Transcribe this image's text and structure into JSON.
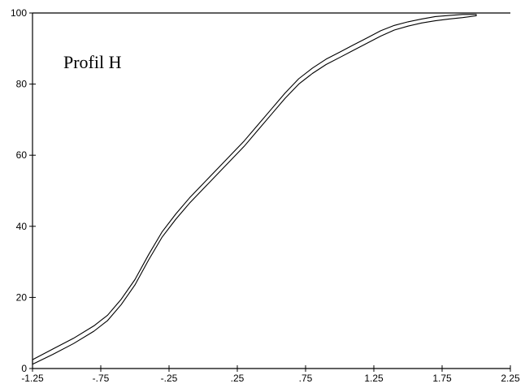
{
  "chart_data": {
    "type": "line",
    "title": "Profil H",
    "xlabel": "",
    "ylabel": "",
    "xlim": [
      -1.25,
      2.25
    ],
    "ylim": [
      0,
      100
    ],
    "x_ticks": [
      -1.25,
      -0.75,
      -0.25,
      0.25,
      0.75,
      1.25,
      1.75,
      2.25
    ],
    "x_tick_labels": [
      "-1.25",
      "-.75",
      "-.25",
      ".25",
      ".75",
      "1.25",
      "1.75",
      "2.25"
    ],
    "y_ticks": [
      0,
      20,
      40,
      60,
      80,
      100
    ],
    "y_tick_labels": [
      "0",
      "20",
      "40",
      "60",
      "80",
      "100"
    ],
    "grid": false,
    "series": [
      {
        "style": "closed-outline-band",
        "x": [
          -1.25,
          -1.1,
          -0.95,
          -0.8,
          -0.7,
          -0.6,
          -0.5,
          -0.4,
          -0.3,
          -0.2,
          -0.1,
          0.0,
          0.1,
          0.2,
          0.3,
          0.4,
          0.5,
          0.6,
          0.7,
          0.8,
          0.9,
          1.0,
          1.1,
          1.2,
          1.3,
          1.4,
          1.5,
          1.6,
          1.7,
          1.8,
          1.9,
          2.0
        ],
        "upper": [
          2.5,
          5.5,
          8.5,
          12,
          15,
          19.5,
          25,
          32,
          38.5,
          43.5,
          48,
          52,
          56,
          60,
          64,
          68.5,
          73,
          77.5,
          81.5,
          84.5,
          87,
          89,
          91,
          93,
          95,
          96.5,
          97.5,
          98.3,
          99,
          99.3,
          99.6,
          99.6
        ],
        "lower": [
          1.2,
          4,
          7,
          10.5,
          13.5,
          18,
          23.5,
          30.5,
          37,
          42,
          46.5,
          50.5,
          54.5,
          58.5,
          62.5,
          67,
          71.5,
          76,
          80,
          83,
          85.5,
          87.5,
          89.5,
          91.5,
          93.5,
          95.2,
          96.3,
          97.2,
          97.8,
          98.3,
          98.7,
          99.2
        ]
      }
    ]
  }
}
